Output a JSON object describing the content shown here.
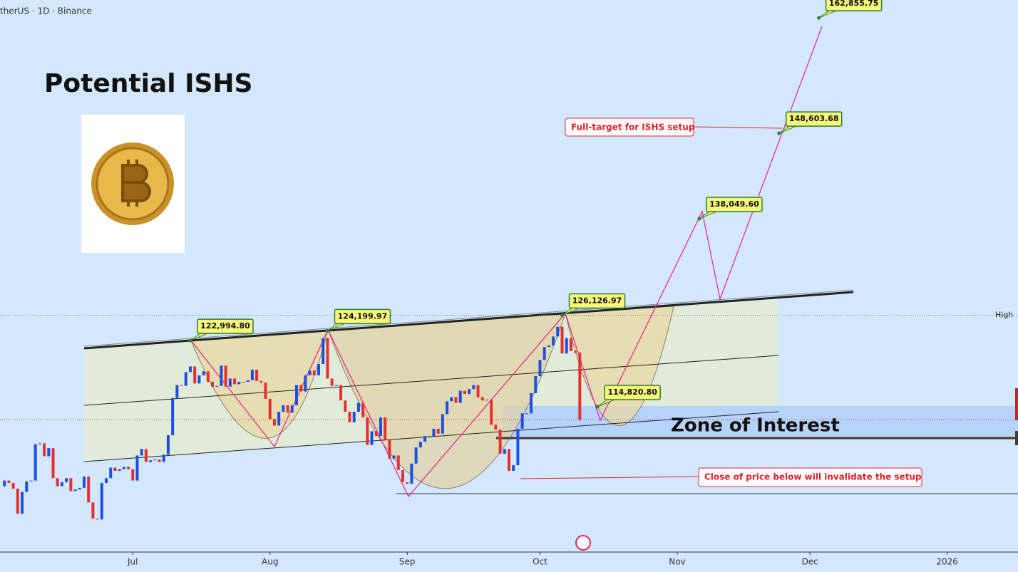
{
  "chart_data": {
    "type": "candlestick",
    "symbol": "therUS · 1D · Binance",
    "title": "Potential ISHS",
    "zone_label": "Zone of Interest",
    "target_note": "Full-target for ISHS setup",
    "invalidation_note": "Close of price below will invalidate the setup",
    "high_label": "High",
    "up_color": "#1f4fe0",
    "down_color": "#e5302f",
    "xlim": [
      0,
      230
    ],
    "ylim": [
      96870,
      165070
    ],
    "xticks": [
      {
        "value": 30,
        "label": "Jul"
      },
      {
        "value": 61,
        "label": "Aug"
      },
      {
        "value": 92,
        "label": "Sep"
      },
      {
        "value": 122,
        "label": "Oct"
      },
      {
        "value": 153,
        "label": "Nov"
      },
      {
        "value": 183,
        "label": "Dec"
      },
      {
        "value": 214,
        "label": "2026"
      }
    ],
    "closes": [
      105000,
      105700,
      105400,
      104700,
      101600,
      104300,
      105600,
      105700,
      110200,
      110300,
      108700,
      109700,
      106000,
      105000,
      105500,
      106000,
      104400,
      104600,
      104800,
      106200,
      103000,
      101000,
      100900,
      105400,
      106000,
      107300,
      106900,
      107100,
      107400,
      107100,
      105700,
      108800,
      109600,
      108000,
      108200,
      108300,
      108000,
      108900,
      111300,
      115900,
      117500,
      117400,
      119100,
      119800,
      117700,
      118700,
      119200,
      117900,
      117300,
      117400,
      119900,
      117300,
      118300,
      117600,
      117900,
      117900,
      118100,
      119400,
      118000,
      117800,
      115800,
      113300,
      112500,
      114200,
      115000,
      114100,
      115000,
      117500,
      116700,
      118700,
      119300,
      118700,
      120100,
      123300,
      118300,
      117400,
      117500,
      115600,
      114200,
      112900,
      114200,
      115300,
      113500,
      110100,
      111800,
      111200,
      113500,
      110700,
      108400,
      108800,
      107000,
      105500,
      105300,
      107800,
      109800,
      110500,
      111200,
      111200,
      112100,
      111500,
      113900,
      115500,
      116000,
      115300,
      116800,
      116400,
      117000,
      117500,
      116000,
      115600,
      115700,
      112600,
      112000,
      109000,
      109600,
      106900,
      107600,
      112100,
      114000,
      114000,
      116500,
      118600,
      120600,
      122200,
      122400,
      123500,
      124700,
      121400,
      123300,
      121700,
      121500,
      113200
    ],
    "annotations": [
      {
        "day": 43,
        "price": 122994.8,
        "label": "122,994.80"
      },
      {
        "day": 74,
        "price": 124199.97,
        "label": "124,199.97"
      },
      {
        "day": 127,
        "price": 126126.97,
        "label": "126,126.97"
      },
      {
        "day": 135,
        "price": 114820.8,
        "label": "114,820.80"
      },
      {
        "day": 158,
        "price": 138049.6,
        "label": "138,049.60"
      },
      {
        "day": 176,
        "price": 148603.68,
        "label": "148,603.68"
      },
      {
        "day": 185,
        "price": 162855.75,
        "label": "162,855.75"
      }
    ]
  }
}
